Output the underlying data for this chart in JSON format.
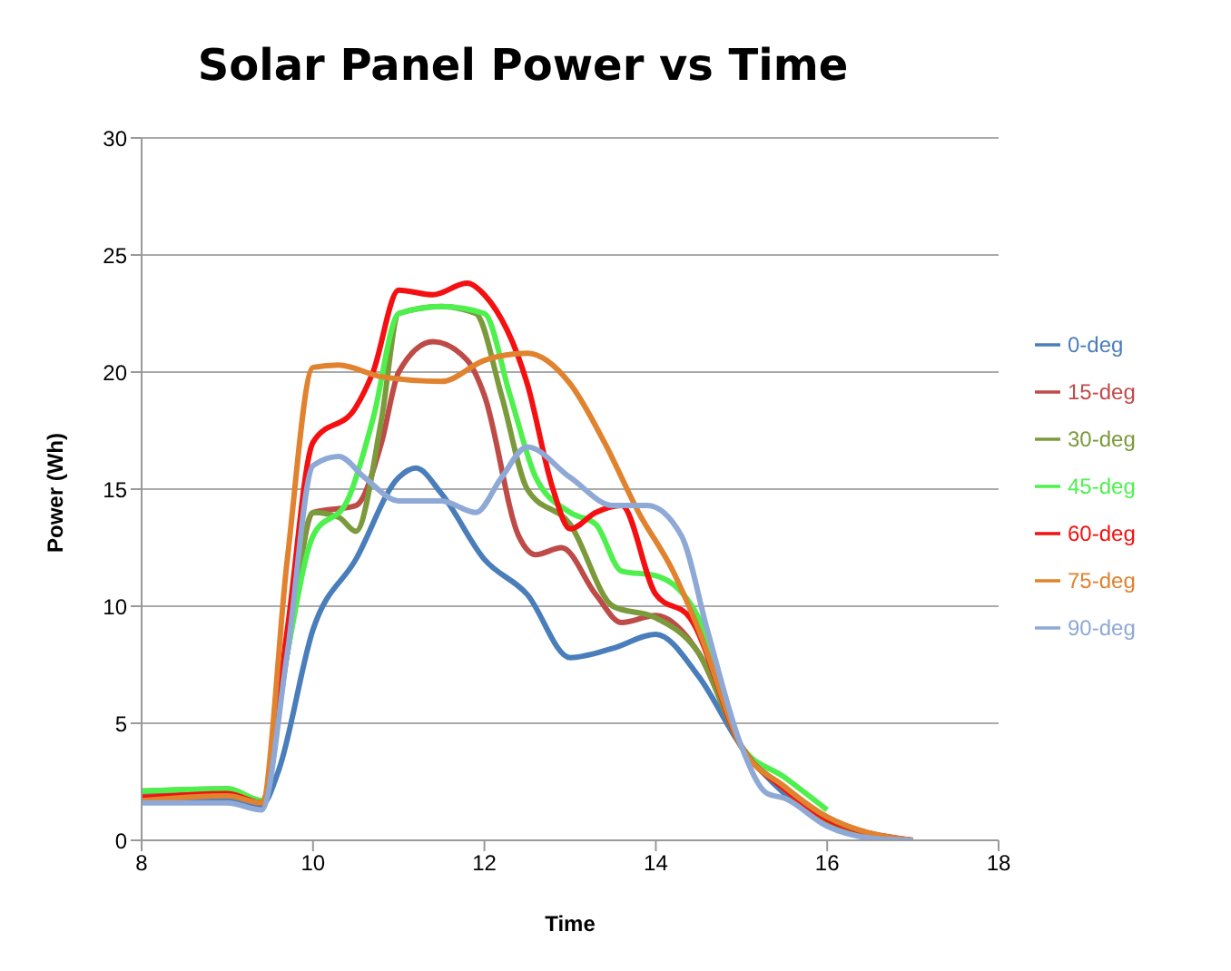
{
  "chart_data": {
    "type": "line",
    "title": "Solar Panel Power vs Time",
    "xlabel": "Time",
    "ylabel": "Power (Wh)",
    "xlim": [
      8,
      18
    ],
    "xticks": [
      8,
      10,
      12,
      14,
      16,
      18
    ],
    "ylim": [
      0,
      30
    ],
    "yticks": [
      0,
      5,
      10,
      15,
      20,
      25,
      30
    ],
    "grid": "y",
    "legend": "right",
    "marker": "none",
    "line_style": "solid",
    "series": [
      {
        "name": "0-deg",
        "color": "#4a7ebb",
        "x": [
          8,
          9,
          9.4,
          9.6,
          10,
          10.5,
          11,
          11.2,
          11.5,
          12,
          12.5,
          13,
          13.5,
          14,
          14.5,
          15,
          15.5,
          16,
          16.5,
          17
        ],
        "values": [
          1.8,
          1.8,
          1.5,
          3,
          9,
          12,
          15.5,
          15.9,
          14.8,
          12,
          10.5,
          7.8,
          8.2,
          8.8,
          7,
          4,
          2,
          0.8,
          0.2,
          0
        ]
      },
      {
        "name": "15-deg",
        "color": "#be4b48",
        "x": [
          8,
          9,
          9.4,
          9.7,
          10,
          10.5,
          10.8,
          11,
          11.4,
          11.8,
          12,
          12.4,
          12.6,
          12.9,
          13.3,
          13.6,
          14,
          14.5,
          15,
          15.5,
          16,
          16.5,
          17
        ],
        "values": [
          2,
          2.1,
          1.6,
          8,
          14,
          14.3,
          17,
          20,
          21.3,
          20.5,
          19,
          13,
          12.2,
          12.5,
          10.5,
          9.3,
          9.6,
          8,
          4,
          2.2,
          0.8,
          0.2,
          0
        ]
      },
      {
        "name": "30-deg",
        "color": "#7b9a3c",
        "x": [
          8,
          9,
          9.4,
          9.7,
          10,
          10.3,
          10.5,
          10.8,
          11,
          11.5,
          11.9,
          12.2,
          12.5,
          13,
          13.5,
          14,
          14.5,
          15,
          15.5,
          16,
          16.5,
          17
        ],
        "values": [
          2.1,
          2.2,
          1.7,
          8,
          14,
          13.8,
          13.2,
          18,
          22.5,
          22.8,
          22.5,
          19,
          15,
          13.5,
          10,
          9.5,
          8,
          4,
          2.2,
          0.8,
          0.2,
          0
        ]
      },
      {
        "name": "45-deg",
        "color": "#4ef04e",
        "x": [
          8,
          9,
          9.4,
          9.7,
          10,
          10.4,
          10.7,
          11,
          11.5,
          12,
          12.3,
          12.6,
          13,
          13.3,
          13.6,
          14,
          14.5,
          15,
          15.5,
          16
        ],
        "values": [
          2.1,
          2.2,
          1.7,
          8,
          13,
          14.5,
          18,
          22.5,
          22.8,
          22.5,
          19,
          15.5,
          14,
          13.5,
          11.5,
          11.3,
          9.5,
          4,
          2.7,
          1.3
        ]
      },
      {
        "name": "60-deg",
        "color": "#f41010",
        "x": [
          8,
          9,
          9.4,
          9.7,
          10,
          10.5,
          10.7,
          11,
          11.4,
          11.8,
          12,
          12.5,
          12.8,
          13,
          13.3,
          13.6,
          14,
          14.4,
          15,
          15.5,
          16,
          16.5,
          17
        ],
        "values": [
          1.8,
          2,
          1.6,
          9,
          17,
          18.5,
          20,
          23.5,
          23.3,
          23.8,
          23.3,
          19.5,
          15,
          13.3,
          14,
          14.3,
          10.5,
          9.5,
          4,
          2.2,
          0.9,
          0.3,
          0
        ]
      },
      {
        "name": "75-deg",
        "color": "#e0822e",
        "x": [
          8,
          9,
          9.4,
          9.7,
          10,
          10.3,
          10.8,
          11.5,
          12,
          12.5,
          13,
          13.4,
          13.8,
          14.2,
          14.5,
          15,
          15.5,
          16,
          16.5,
          17
        ],
        "values": [
          1.7,
          1.9,
          1.6,
          12,
          20.2,
          20.3,
          19.8,
          19.6,
          20.5,
          20.8,
          19.5,
          17,
          14,
          11.5,
          9,
          4,
          2.3,
          1,
          0.3,
          0
        ]
      },
      {
        "name": "90-deg",
        "color": "#8ea9d6",
        "x": [
          8,
          9,
          9.4,
          9.7,
          10,
          10.3,
          10.6,
          11,
          11.5,
          11.9,
          12.2,
          12.5,
          13,
          13.5,
          13.9,
          14.3,
          14.6,
          15,
          15.3,
          15.5,
          16,
          16.5,
          17
        ],
        "values": [
          1.6,
          1.6,
          1.3,
          8,
          16,
          16.4,
          15.5,
          14.5,
          14.5,
          14,
          15.5,
          16.8,
          15.5,
          14.3,
          14.3,
          13,
          9,
          4,
          2,
          1.8,
          0.6,
          0.1,
          0
        ]
      }
    ]
  }
}
